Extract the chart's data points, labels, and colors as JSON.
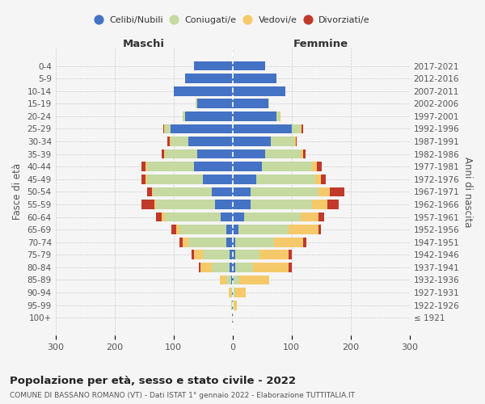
{
  "age_groups": [
    "100+",
    "95-99",
    "90-94",
    "85-89",
    "80-84",
    "75-79",
    "70-74",
    "65-69",
    "60-64",
    "55-59",
    "50-54",
    "45-49",
    "40-44",
    "35-39",
    "30-34",
    "25-29",
    "20-24",
    "15-19",
    "10-14",
    "5-9",
    "0-4"
  ],
  "birth_years": [
    "≤ 1921",
    "1922-1926",
    "1927-1931",
    "1932-1936",
    "1937-1941",
    "1942-1946",
    "1947-1951",
    "1952-1956",
    "1957-1961",
    "1962-1966",
    "1967-1971",
    "1972-1976",
    "1977-1981",
    "1982-1986",
    "1987-1991",
    "1992-1996",
    "1997-2001",
    "2002-2006",
    "2007-2011",
    "2012-2016",
    "2017-2021"
  ],
  "colors": {
    "celibi": "#4472C4",
    "coniugati": "#c5d9a0",
    "vedovi": "#f5c96a",
    "divorziati": "#c0392b"
  },
  "males": {
    "celibi": [
      1,
      1,
      1,
      2,
      5,
      5,
      10,
      10,
      20,
      30,
      35,
      50,
      65,
      60,
      75,
      105,
      80,
      60,
      100,
      80,
      65
    ],
    "coniugati": [
      0,
      1,
      2,
      8,
      30,
      45,
      65,
      80,
      95,
      100,
      100,
      95,
      80,
      55,
      30,
      10,
      5,
      2,
      0,
      0,
      0
    ],
    "vedovi": [
      0,
      1,
      3,
      12,
      20,
      15,
      10,
      5,
      5,
      3,
      2,
      2,
      2,
      1,
      1,
      1,
      0,
      0,
      0,
      0,
      0
    ],
    "divorziati": [
      0,
      0,
      0,
      0,
      2,
      5,
      5,
      8,
      10,
      22,
      8,
      8,
      8,
      4,
      4,
      2,
      0,
      0,
      0,
      0,
      0
    ]
  },
  "females": {
    "celibi": [
      1,
      1,
      1,
      2,
      5,
      5,
      5,
      10,
      20,
      30,
      30,
      40,
      50,
      55,
      65,
      100,
      75,
      60,
      90,
      75,
      55
    ],
    "coniugati": [
      0,
      1,
      3,
      10,
      30,
      40,
      65,
      85,
      95,
      105,
      115,
      100,
      85,
      60,
      40,
      15,
      5,
      2,
      0,
      0,
      0
    ],
    "vedovi": [
      1,
      5,
      18,
      50,
      60,
      50,
      50,
      50,
      30,
      25,
      20,
      10,
      8,
      5,
      2,
      2,
      1,
      0,
      0,
      0,
      0
    ],
    "divorziati": [
      0,
      0,
      0,
      0,
      5,
      5,
      5,
      5,
      10,
      20,
      25,
      8,
      8,
      4,
      2,
      2,
      0,
      0,
      0,
      0,
      0
    ]
  },
  "title": "Popolazione per età, sesso e stato civile - 2022",
  "subtitle": "COMUNE DI BASSANO ROMANO (VT) - Dati ISTAT 1° gennaio 2022 - Elaborazione TUTTITALIA.IT",
  "xlabel_left": "Maschi",
  "xlabel_right": "Femmine",
  "ylabel_left": "Fasce di età",
  "ylabel_right": "Anni di nascita",
  "xlim": 300,
  "legend_labels": [
    "Celibi/Nubili",
    "Coniugati/e",
    "Vedovi/e",
    "Divorziati/e"
  ],
  "background_color": "#f5f5f5",
  "grid_color": "#cccccc"
}
